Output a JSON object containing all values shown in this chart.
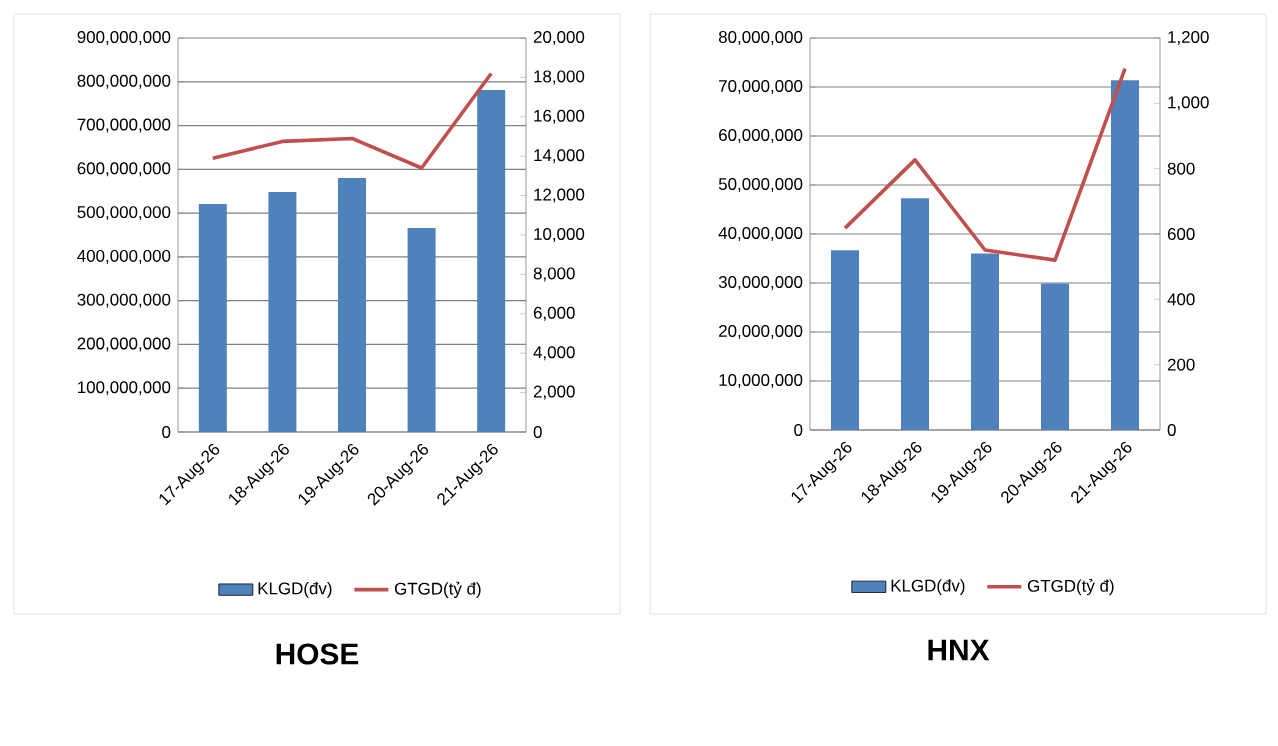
{
  "chart_data": [
    {
      "type": "bar",
      "title": "HOSE",
      "categories": [
        "17-Aug-26",
        "18-Aug-26",
        "19-Aug-26",
        "20-Aug-26",
        "21-Aug-26"
      ],
      "series": [
        {
          "name": "KLGD(đv)",
          "color": "#4f81bd",
          "values": [
            521000000,
            548000000,
            580000000,
            466000000,
            781000000
          ]
        },
        {
          "name": "GTGD(tỷ đ)",
          "type": "line",
          "axis": "y2",
          "color": "#c0504d",
          "values": [
            13900,
            14750,
            14900,
            13400,
            18200
          ]
        }
      ],
      "ylim": [
        0,
        900000000
      ],
      "yticks": [
        0,
        {
          "value": 100000000,
          "label": "100,000,000"
        },
        {
          "value": 200000000,
          "label": "200,000,000"
        },
        {
          "value": 300000000,
          "label": "300,000,000"
        },
        {
          "value": 400000000,
          "label": "400,000,000"
        },
        {
          "value": 500000000,
          "label": "500,000,000"
        },
        {
          "value": 600000000,
          "label": "600,000,000"
        },
        {
          "value": 700000000,
          "label": "700,000,000"
        },
        {
          "value": 800000000,
          "label": "800,000,000"
        },
        {
          "value": 900000000,
          "label": "900,000,000"
        }
      ],
      "y2lim": [
        0,
        20000
      ],
      "y2ticks": [
        0,
        {
          "value": 2000,
          "label": "2,000"
        },
        {
          "value": 4000,
          "label": "4,000"
        },
        {
          "value": 6000,
          "label": "6,000"
        },
        {
          "value": 8000,
          "label": "8,000"
        },
        {
          "value": 10000,
          "label": "10,000"
        },
        {
          "value": 12000,
          "label": "12,000"
        },
        {
          "value": 14000,
          "label": "14,000"
        },
        {
          "value": 16000,
          "label": "16,000"
        },
        {
          "value": 18000,
          "label": "18,000"
        },
        {
          "value": 20000,
          "label": "20,000"
        }
      ],
      "grid": "y",
      "legend": "bottom"
    },
    {
      "type": "bar",
      "title": "HNX",
      "categories": [
        "17-Aug-26",
        "18-Aug-26",
        "19-Aug-26",
        "20-Aug-26",
        "21-Aug-26"
      ],
      "series": [
        {
          "name": "KLGD(đv)",
          "color": "#4f81bd",
          "values": [
            36700000,
            47300000,
            36000000,
            29900000,
            71400000
          ]
        },
        {
          "name": "GTGD(tỷ đ)",
          "type": "line",
          "axis": "y2",
          "color": "#c0504d",
          "values": [
            618,
            827,
            551,
            520,
            1106
          ]
        }
      ],
      "ylim": [
        0,
        80000000
      ],
      "yticks": [
        0,
        {
          "value": 10000000,
          "label": "10,000,000"
        },
        {
          "value": 20000000,
          "label": "20,000,000"
        },
        {
          "value": 30000000,
          "label": "30,000,000"
        },
        {
          "value": 40000000,
          "label": "40,000,000"
        },
        {
          "value": 50000000,
          "label": "50,000,000"
        },
        {
          "value": 60000000,
          "label": "60,000,000"
        },
        {
          "value": 70000000,
          "label": "70,000,000"
        },
        {
          "value": 80000000,
          "label": "80,000,000"
        }
      ],
      "y2lim": [
        0,
        1200
      ],
      "y2ticks": [
        0,
        200,
        400,
        600,
        800,
        {
          "value": 1000,
          "label": "1,000"
        },
        {
          "value": 1200,
          "label": "1,200"
        }
      ],
      "grid": "y",
      "legend": "bottom"
    }
  ]
}
